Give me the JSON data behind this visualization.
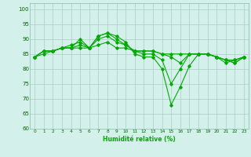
{
  "title": "",
  "xlabel": "Humidité relative (%)",
  "ylabel": "",
  "bg_color": "#d4f0eb",
  "grid_color": "#aaccc4",
  "line_color": "#00aa00",
  "marker": "D",
  "markersize": 1.8,
  "linewidth": 0.8,
  "ylim": [
    60,
    102
  ],
  "yticks": [
    60,
    65,
    70,
    75,
    80,
    85,
    90,
    95,
    100
  ],
  "xticks": [
    0,
    1,
    2,
    3,
    4,
    5,
    6,
    7,
    8,
    9,
    10,
    11,
    12,
    13,
    14,
    15,
    16,
    17,
    18,
    19,
    20,
    21,
    22,
    23
  ],
  "series": [
    [
      84,
      86,
      86,
      87,
      87,
      90,
      87,
      91,
      92,
      91,
      89,
      85,
      84,
      84,
      80,
      68,
      74,
      81,
      85,
      85,
      84,
      82,
      83,
      84
    ],
    [
      84,
      86,
      86,
      87,
      88,
      89,
      87,
      91,
      92,
      90,
      88,
      86,
      85,
      85,
      83,
      75,
      80,
      85,
      85,
      85,
      84,
      83,
      83,
      84
    ],
    [
      84,
      86,
      86,
      87,
      87,
      88,
      87,
      90,
      91,
      89,
      88,
      86,
      86,
      86,
      85,
      84,
      82,
      85,
      85,
      85,
      84,
      83,
      82,
      84
    ],
    [
      84,
      85,
      86,
      87,
      87,
      87,
      87,
      88,
      89,
      87,
      87,
      86,
      86,
      86,
      85,
      85,
      85,
      85,
      85,
      85,
      84,
      83,
      82,
      84
    ]
  ]
}
